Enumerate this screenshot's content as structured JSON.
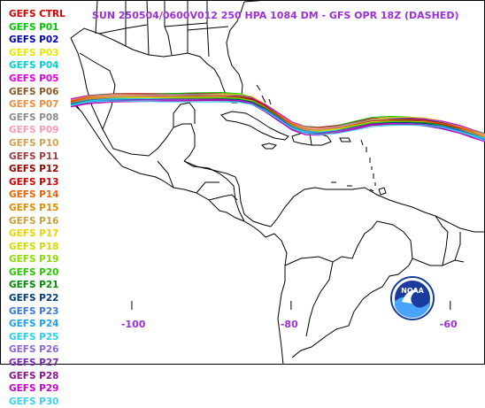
{
  "header": {
    "title": "SUN 250504/0600V012  250 HPA 1084 DM - GFS OPR 18Z (DASHED)",
    "color": "#9b30d9"
  },
  "legend": [
    {
      "label": "GEFS CTRL",
      "color": "#d40000"
    },
    {
      "label": "GEFS P01",
      "color": "#00c800"
    },
    {
      "label": "GEFS P02",
      "color": "#0000b4"
    },
    {
      "label": "GEFS P03",
      "color": "#e8e800"
    },
    {
      "label": "GEFS P04",
      "color": "#00d2d2"
    },
    {
      "label": "GEFS P05",
      "color": "#e600e6"
    },
    {
      "label": "GEFS P06",
      "color": "#8c5a28"
    },
    {
      "label": "GEFS P07",
      "color": "#f08c3c"
    },
    {
      "label": "GEFS P08",
      "color": "#8c8c8c"
    },
    {
      "label": "GEFS P09",
      "color": "#ff9ab4"
    },
    {
      "label": "GEFS P10",
      "color": "#d2a050"
    },
    {
      "label": "GEFS P11",
      "color": "#a03c3c"
    },
    {
      "label": "GEFS P12",
      "color": "#960000"
    },
    {
      "label": "GEFS P13",
      "color": "#d20000"
    },
    {
      "label": "GEFS P14",
      "color": "#f06400"
    },
    {
      "label": "GEFS P15",
      "color": "#dc8c00"
    },
    {
      "label": "GEFS P16",
      "color": "#c8a03c"
    },
    {
      "label": "GEFS P17",
      "color": "#f0d200"
    },
    {
      "label": "GEFS P18",
      "color": "#d2dc00"
    },
    {
      "label": "GEFS P19",
      "color": "#8cdc00"
    },
    {
      "label": "GEFS P20",
      "color": "#28c800"
    },
    {
      "label": "GEFS P21",
      "color": "#008c00"
    },
    {
      "label": "GEFS P22",
      "color": "#003c78"
    },
    {
      "label": "GEFS P23",
      "color": "#3c78dc"
    },
    {
      "label": "GEFS P24",
      "color": "#1ea0f0"
    },
    {
      "label": "GEFS P25",
      "color": "#28d2e6"
    },
    {
      "label": "GEFS P26",
      "color": "#8c64dc"
    },
    {
      "label": "GEFS P27",
      "color": "#7828b4"
    },
    {
      "label": "GEFS P28",
      "color": "#8c148c"
    },
    {
      "label": "GEFS P29",
      "color": "#c800c8"
    },
    {
      "label": "GEFS P30",
      "color": "#3cd2f0"
    }
  ],
  "axis": {
    "lon_labels": [
      "-100",
      "-80",
      "-60"
    ],
    "lon_values": [
      -100,
      -80,
      -60
    ],
    "label_color": "#9b30d9"
  },
  "map": {
    "coast_color": "#000000",
    "lon_range": [
      -115,
      -55
    ],
    "lat_range": [
      -2,
      36
    ],
    "contour_level": "1084 DM"
  },
  "logo": {
    "icon": "noaa-logo-icon",
    "text": "NOAA"
  }
}
